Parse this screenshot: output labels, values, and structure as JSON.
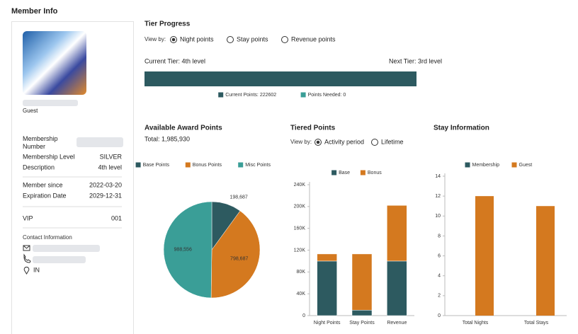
{
  "header": {
    "title": "Member Info"
  },
  "member": {
    "name": "Guest",
    "fields": [
      {
        "label": "Membership Number"
      },
      {
        "label": "Membership Level",
        "value": "SILVER"
      },
      {
        "label": "Description",
        "value": "4th level"
      },
      {
        "label": "Member since",
        "value": "2022-03-20"
      },
      {
        "label": "Expiration Date",
        "value": "2029-12-31"
      },
      {
        "label": "VIP",
        "value": "001"
      }
    ],
    "contact": {
      "title": "Contact Information",
      "location": "IN"
    }
  },
  "tier_progress": {
    "title": "Tier Progress",
    "view_by": "View by:",
    "options": [
      "Night points",
      "Stay points",
      "Revenue points"
    ],
    "selected": 0,
    "current_tier": "Current Tier: 4th level",
    "next_tier": "Next Tier: 3rd level"
  },
  "chart_data": [
    {
      "type": "hbar",
      "series": [
        {
          "name": "Current Points: 222602",
          "color": "#2d5a60",
          "values": [
            222602
          ]
        },
        {
          "name": "Points Needed: 0",
          "color": "#3a9e97",
          "values": [
            0
          ]
        }
      ]
    },
    {
      "type": "pie",
      "title": "Available Award Points",
      "subtitle": "Total: 1,985,930",
      "categories": [
        "Base Points",
        "Bonus Points",
        "Misc Points"
      ],
      "values": [
        198687,
        798687,
        988556
      ],
      "value_labels": [
        "198,687",
        "798,687",
        "988,556"
      ],
      "colors": [
        "#2d5a60",
        "#d4791f",
        "#3a9e97"
      ]
    },
    {
      "type": "bar",
      "stacked": true,
      "title": "Tiered Points",
      "view_by": "View by:",
      "options": [
        "Activity period",
        "Lifetime"
      ],
      "selected": 0,
      "categories": [
        "Night Points",
        "Stay Points",
        "Revenue"
      ],
      "series": [
        {
          "name": "Base",
          "color": "#2d5a60",
          "values": [
            100000,
            10000,
            100000
          ]
        },
        {
          "name": "Bonus",
          "color": "#d4791f",
          "values": [
            13000,
            103000,
            102000
          ]
        }
      ],
      "ylim": [
        0,
        240000
      ],
      "yticks": [
        0,
        {
          "value": 40000,
          "label": "40K"
        },
        {
          "value": 80000,
          "label": "80K"
        },
        {
          "value": 120000,
          "label": "120K"
        },
        {
          "value": 160000,
          "label": "160K"
        },
        {
          "value": 200000,
          "label": "200K"
        },
        {
          "value": 240000,
          "label": "240K"
        }
      ]
    },
    {
      "type": "bar",
      "stacked": false,
      "title": "Stay Information",
      "categories": [
        "Total Nights",
        "Total Stays"
      ],
      "series": [
        {
          "name": "Membership",
          "color": "#2d5a60",
          "values": [
            0,
            0
          ]
        },
        {
          "name": "Guest",
          "color": "#d4791f",
          "values": [
            12,
            11
          ]
        }
      ],
      "ylim": [
        0,
        14
      ],
      "yticks": [
        0,
        2,
        4,
        6,
        8,
        10,
        12,
        14
      ]
    }
  ]
}
